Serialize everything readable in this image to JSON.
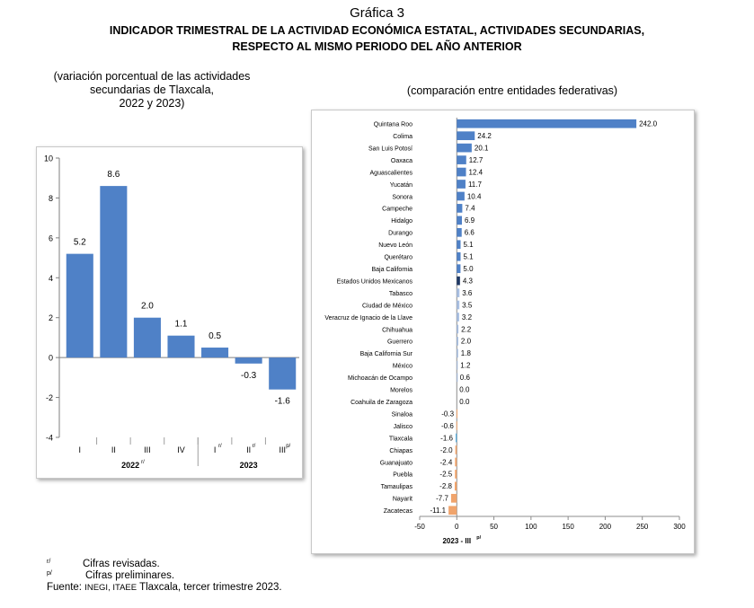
{
  "figure_number": "Gráfica 3",
  "title_lines": [
    "INDICADOR TRIMESTRAL DE LA ACTIVIDAD ECONÓMICA ESTATAL, ACTIVIDADES SECUNDARIAS,",
    "RESPECTO AL MISMO PERIODO DEL AÑO ANTERIOR"
  ],
  "left_subtitle_lines": [
    "(variación porcentual de las actividades",
    "secundarias de Tlaxcala,",
    "2022 y 2023)"
  ],
  "right_subtitle": "(comparación entre entidades federativas)",
  "notes": {
    "revised_mark": "r/",
    "revised_text": "Cifras revisadas.",
    "preliminary_mark": "p/",
    "preliminary_text": "Cifras preliminares.",
    "source_prefix": "Fuente: ",
    "source_small": "INEGI, ITAEE",
    "source_rest": " Tlaxcala, tercer trimestre 2023."
  },
  "chart_data": [
    {
      "type": "bar",
      "orientation": "vertical",
      "categories": [
        "I",
        "II",
        "III",
        "IV",
        "I",
        "II",
        "III"
      ],
      "category_superscripts": [
        "",
        "",
        "",
        "",
        "r/",
        "r/",
        "p/"
      ],
      "groups": [
        {
          "label": "2022",
          "superscript": "r/",
          "start": 0,
          "end": 3
        },
        {
          "label": "2023",
          "superscript": "",
          "start": 4,
          "end": 6
        }
      ],
      "values": [
        5.2,
        8.6,
        2.0,
        1.1,
        0.5,
        -0.3,
        -1.6
      ],
      "data_labels": [
        "5.2",
        "8.6",
        "2.0",
        "1.1",
        "0.5",
        "-0.3",
        "-1.6"
      ],
      "ylim": [
        -4,
        10
      ],
      "yticks": [
        -4,
        -2,
        0,
        2,
        4,
        6,
        8,
        10
      ],
      "bar_color": "#4f81c7",
      "grid": false
    },
    {
      "type": "bar",
      "orientation": "horizontal",
      "categories": [
        "Quintana Roo",
        "Colima",
        "San Luis Potosí",
        "Oaxaca",
        "Aguascalientes",
        "Yucatán",
        "Sonora",
        "Campeche",
        "Hidalgo",
        "Durango",
        "Nuevo León",
        "Querétaro",
        "Baja California",
        "Estados Unidos Mexicanos",
        "Tabasco",
        "Ciudad de México",
        "Veracruz de Ignacio de la Llave",
        "Chihuahua",
        "Guerrero",
        "Baja California Sur",
        "México",
        "Michoacán de Ocampo",
        "Morelos",
        "Coahuila de Zaragoza",
        "Sinaloa",
        "Jalisco",
        "Tlaxcala",
        "Chiapas",
        "Guanajuato",
        "Puebla",
        "Tamaulipas",
        "Nayarit",
        "Zacatecas"
      ],
      "values": [
        242.0,
        24.2,
        20.1,
        12.7,
        12.4,
        11.7,
        10.4,
        7.4,
        6.9,
        6.6,
        5.1,
        5.1,
        5.0,
        4.3,
        3.6,
        3.5,
        3.2,
        2.2,
        2.0,
        1.8,
        1.2,
        0.6,
        0.0,
        0.0,
        -0.3,
        -0.6,
        -1.6,
        -2.0,
        -2.4,
        -2.5,
        -2.8,
        -7.7,
        -11.1
      ],
      "data_labels": [
        "242.0",
        "24.2",
        "20.1",
        "12.7",
        "12.4",
        "11.7",
        "10.4",
        "7.4",
        "6.9",
        "6.6",
        "5.1",
        "5.1",
        "5.0",
        "4.3",
        "3.6",
        "3.5",
        "3.2",
        "2.2",
        "2.0",
        "1.8",
        "1.2",
        "0.6",
        "0.0",
        "0.0",
        "-0.3",
        "-0.6",
        "-1.6",
        "-2.0",
        "-2.4",
        "-2.5",
        "-2.8",
        "-7.7",
        "-11.1"
      ],
      "xlim": [
        -50,
        300
      ],
      "xticks": [
        -50,
        0,
        50,
        100,
        150,
        200,
        250,
        300
      ],
      "xlabel": "2023 - III",
      "xlabel_superscript": "p/",
      "colors": {
        "top_positive": "#4f81c7",
        "light_positive": "#a9c0e3",
        "national": "#1f3864",
        "tlaxcala": "#5eb1e0",
        "negative": "#f0a46c"
      },
      "grid": false
    }
  ]
}
